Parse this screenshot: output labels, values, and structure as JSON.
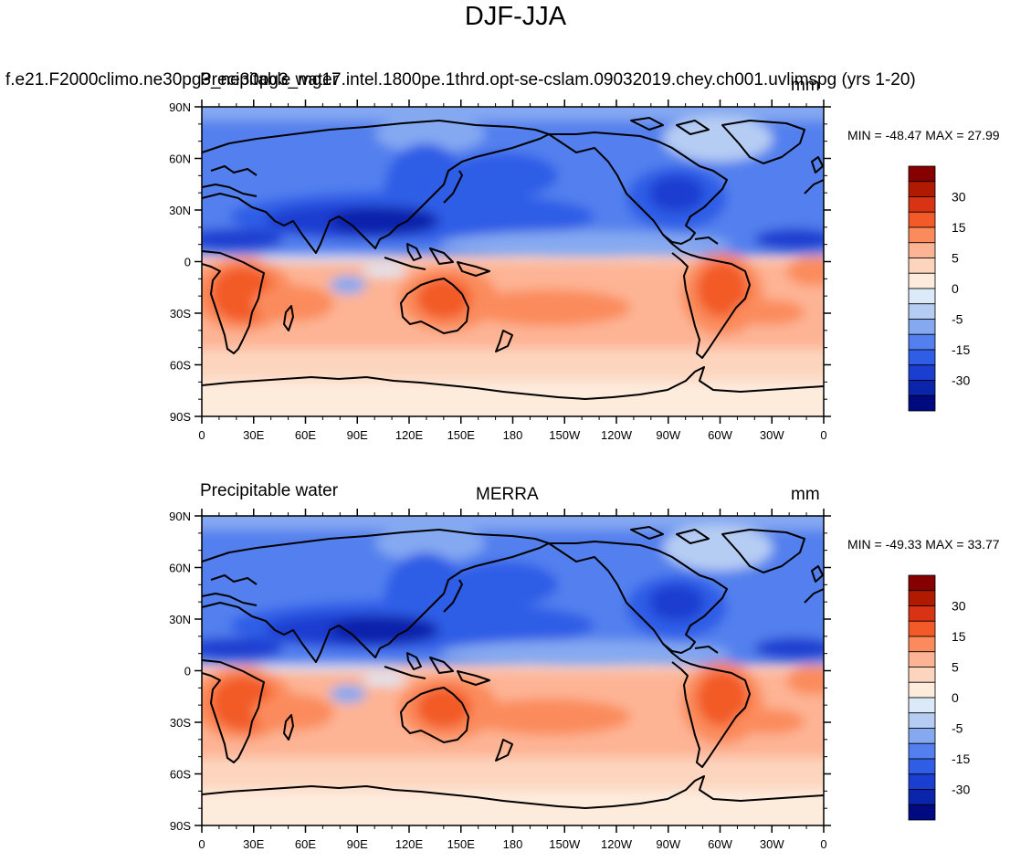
{
  "figure": {
    "title": "DJF-JJA"
  },
  "panels": [
    {
      "left_title": "Precipitable water",
      "center_title": "f.e21.F2000climo.ne30pg3_ne30pg3_mg17.intel.1800pe.1thrd.opt-se-cslam.09032019.chey.ch001.uvlimspg (yrs 1-20)",
      "units": "mm",
      "minmax": "MIN = -48.47 MAX =  27.99"
    },
    {
      "left_title": "Precipitable water",
      "center_title": "MERRA",
      "units": "mm",
      "minmax": "MIN = -49.33 MAX =  33.77"
    }
  ],
  "axes": {
    "lat_labels": [
      "90N",
      "60N",
      "30N",
      "0",
      "30S",
      "60S",
      "90S"
    ],
    "lon_labels": [
      "0",
      "30E",
      "60E",
      "90E",
      "120E",
      "150E",
      "180",
      "150W",
      "120W",
      "90W",
      "60W",
      "30W",
      "0"
    ]
  },
  "colorbar": {
    "labels": [
      "30",
      "15",
      "5",
      "0",
      "-5",
      "-15",
      "-30"
    ],
    "colors": [
      "#870000",
      "#b01b00",
      "#d83314",
      "#f25a28",
      "#fb8b5c",
      "#fdb494",
      "#fdd5bf",
      "#fdebdc",
      "#dbe9f8",
      "#b6cdf3",
      "#85a9f1",
      "#5380ee",
      "#2f5de6",
      "#1a3ed0",
      "#0a24ab",
      "#000a80"
    ]
  },
  "colors": {
    "land_outline": "#000000",
    "tropics_pos": "#f25a28",
    "subtropics_pos": "#fb8b5c",
    "south_ocean": "#fdb494",
    "antarctic": "#fdebdc",
    "nh_ocean": "#5380ee",
    "nh_strong": "#1a3ed0",
    "nh_deep": "#0a24ab",
    "arctic": "#b6cdf3"
  }
}
